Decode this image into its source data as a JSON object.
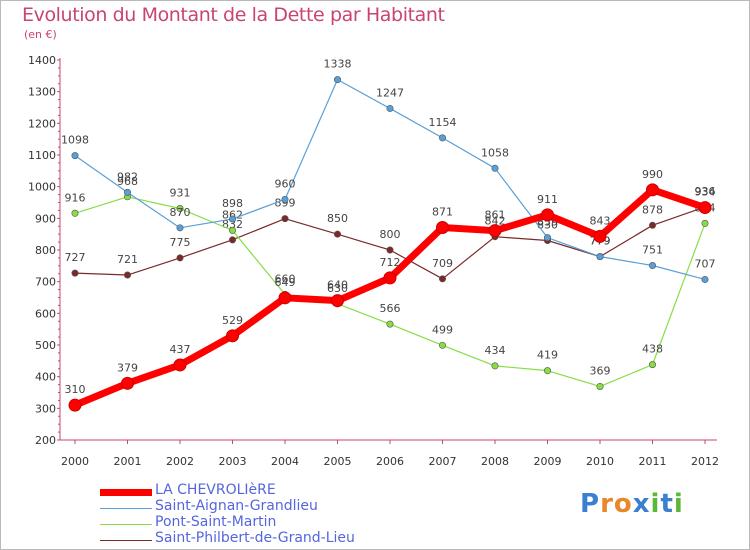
{
  "chart_data": {
    "type": "line",
    "title": "Evolution du Montant de la Dette par Habitant",
    "ylabel": "(en €)",
    "x": [
      "2000",
      "2001",
      "2002",
      "2003",
      "2004",
      "2005",
      "2006",
      "2007",
      "2008",
      "2009",
      "2010",
      "2011",
      "2012"
    ],
    "ylim": [
      200,
      1400
    ],
    "yticks": [
      200,
      300,
      400,
      500,
      600,
      700,
      800,
      900,
      1000,
      1100,
      1200,
      1300,
      1400
    ],
    "grid": false,
    "legend": "bottom-left",
    "series": [
      {
        "name": "LA CHEVROLIèRE",
        "color": "#ff0000",
        "values": [
          310,
          379,
          437,
          529,
          649,
          640,
          712,
          871,
          861,
          911,
          843,
          990,
          934
        ]
      },
      {
        "name": "Saint-Aignan-Grandlieu",
        "color": "#5aa0d8",
        "values": [
          1098,
          982,
          870,
          898,
          960,
          1338,
          1247,
          1154,
          1058,
          839,
          779,
          751,
          707
        ]
      },
      {
        "name": "Pont-Saint-Martin",
        "color": "#88dd44",
        "values": [
          916,
          968,
          931,
          862,
          660,
          630,
          566,
          499,
          434,
          419,
          369,
          438,
          884
        ]
      },
      {
        "name": "Saint-Philbert-de-Grand-Lieu",
        "color": "#7a2a2a",
        "values": [
          727,
          721,
          775,
          832,
          899,
          850,
          800,
          709,
          842,
          830,
          779,
          878,
          936
        ]
      }
    ]
  },
  "logo": {
    "name": "proxiti-logo",
    "text": "Proxiti",
    "letters": [
      "P",
      "r",
      "o",
      "x",
      "i",
      "t",
      "i"
    ],
    "colors": [
      "#3a7fd0",
      "#e8882a",
      "#e8882a",
      "#3a7fd0",
      "#5cb838",
      "#3a7fd0",
      "#5cb838"
    ]
  }
}
